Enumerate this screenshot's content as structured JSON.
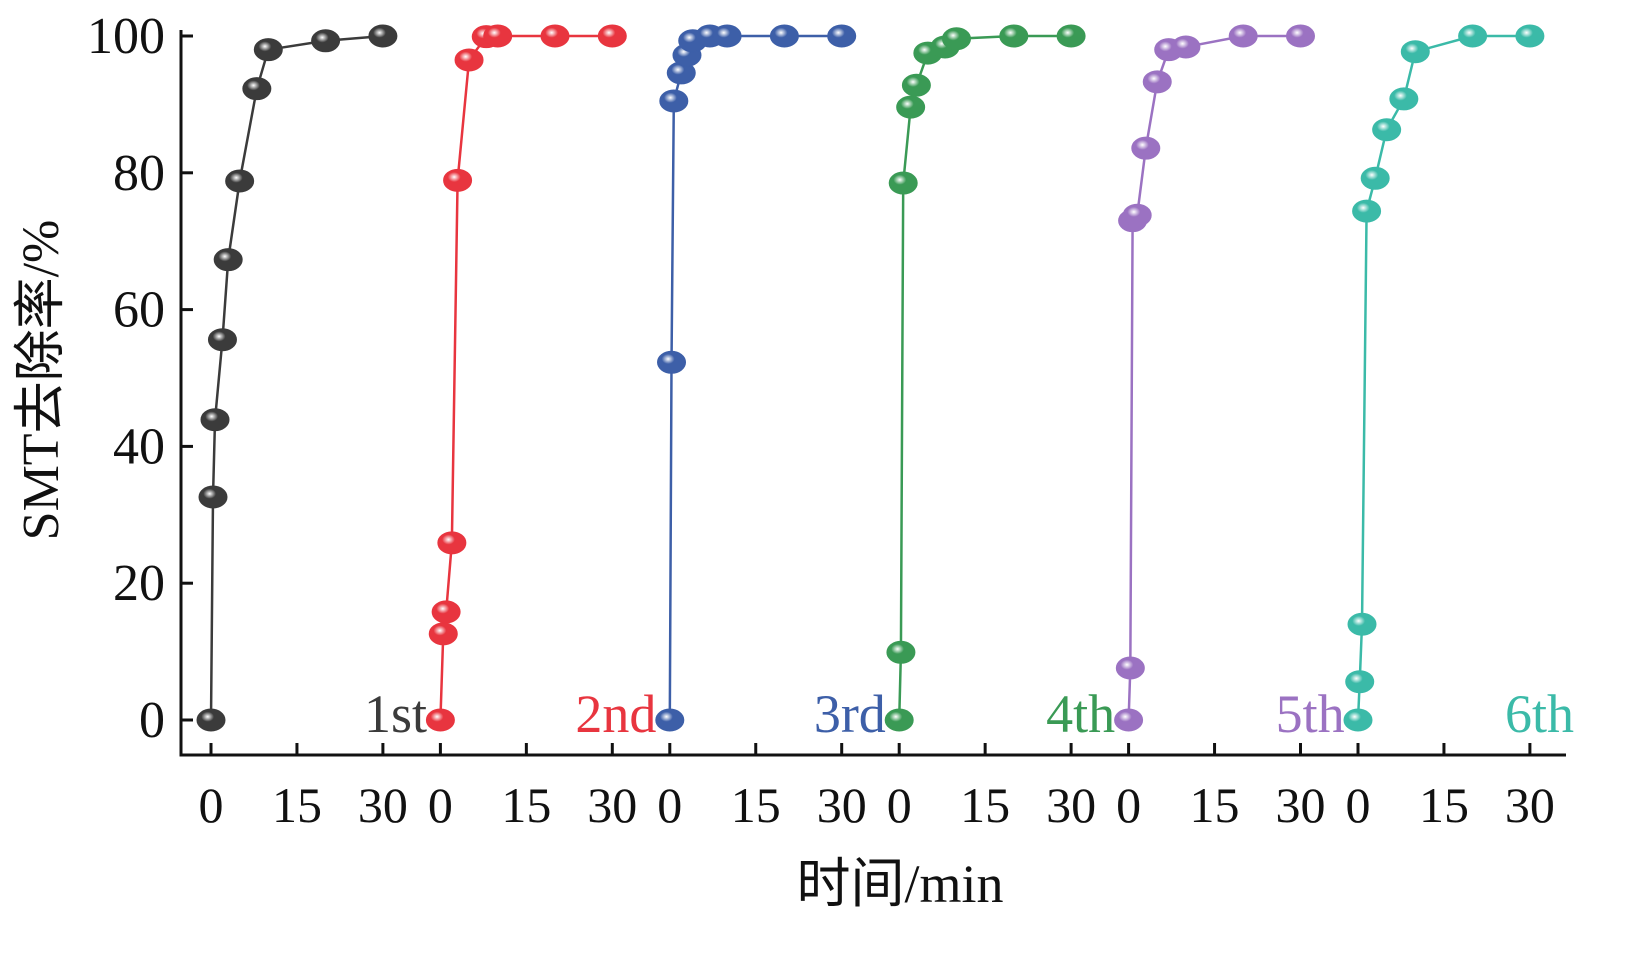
{
  "chart_data": {
    "type": "line",
    "title": "",
    "xlabel": "时间/min",
    "ylabel": "SMT去除率/%",
    "ylim": [
      0,
      100
    ],
    "xlim_per_panel": [
      0,
      30
    ],
    "yticks": [
      "0",
      "20",
      "40",
      "60",
      "80",
      "100"
    ],
    "xticks": [
      "0",
      "15",
      "30"
    ],
    "grid": false,
    "series": [
      {
        "name": "1st",
        "color": "#3b3b3b",
        "x": [
          0,
          0.35,
          0.7,
          2,
          3,
          5,
          8,
          10,
          20,
          30
        ],
        "y": [
          0,
          32.6,
          43.9,
          55.6,
          67.3,
          78.8,
          92.3,
          98,
          99.3,
          100
        ]
      },
      {
        "name": "2nd",
        "color": "#e8353f",
        "x": [
          0,
          0.5,
          1,
          2,
          3,
          5,
          8,
          10,
          20,
          30
        ],
        "y": [
          0,
          12.6,
          15.8,
          25.9,
          78.9,
          96.5,
          99.9,
          100,
          100,
          100
        ]
      },
      {
        "name": "3rd",
        "color": "#3d5fa8",
        "x": [
          0,
          0.3,
          0.7,
          2,
          3,
          4,
          7,
          10,
          20,
          30
        ],
        "y": [
          0,
          52.3,
          90.5,
          94.6,
          97.2,
          99.3,
          100,
          100,
          100,
          100
        ]
      },
      {
        "name": "4th",
        "color": "#3a9a55",
        "x": [
          0,
          0.3,
          0.7,
          2,
          3,
          5,
          8,
          10,
          20,
          30
        ],
        "y": [
          0,
          9.9,
          78.5,
          89.6,
          92.8,
          97.5,
          98.4,
          99.6,
          100,
          100
        ]
      },
      {
        "name": "5th",
        "color": "#9b72c2",
        "x": [
          0,
          0.3,
          0.7,
          1.5,
          3,
          5,
          7,
          10,
          20,
          30
        ],
        "y": [
          0,
          7.6,
          73,
          73.8,
          83.6,
          93.3,
          98,
          98.4,
          100,
          100
        ]
      },
      {
        "name": "6th",
        "color": "#3bbaa8",
        "x": [
          0,
          0.3,
          0.7,
          1.5,
          3,
          5,
          8,
          10,
          20,
          30
        ],
        "y": [
          0,
          5.6,
          14,
          74.4,
          79.2,
          86.3,
          90.8,
          97.7,
          100,
          100
        ]
      }
    ]
  }
}
